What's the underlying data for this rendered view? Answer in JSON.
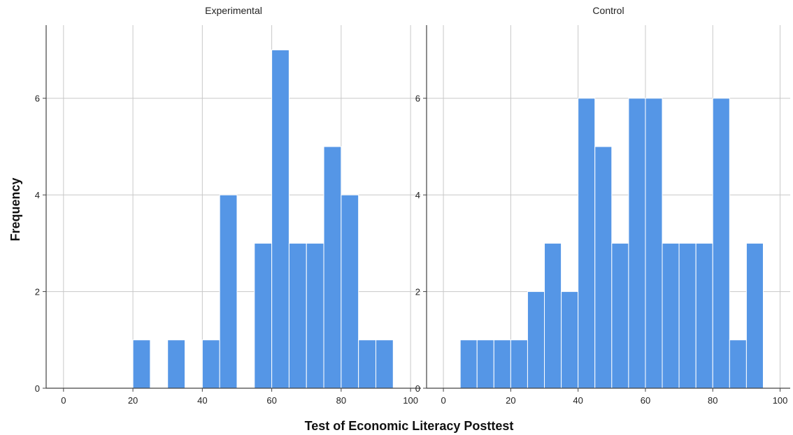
{
  "chart_data": {
    "type": "bar",
    "xlabel": "Test of Economic Literacy Posttest",
    "ylabel": "Frequency",
    "xlim": [
      -5,
      103
    ],
    "ylim": [
      0,
      7.6
    ],
    "x_ticks": [
      0,
      20,
      40,
      60,
      80,
      100
    ],
    "y_ticks": [
      0,
      2,
      4,
      6
    ],
    "bin_width": 5,
    "grid": true,
    "bar_color": "#5596e6",
    "bar_edge_color": "#ffffff",
    "grid_color": "#c8c8c8",
    "panels": [
      {
        "title": "Experimental",
        "bins": [
          {
            "start": 20,
            "end": 25,
            "count": 1
          },
          {
            "start": 30,
            "end": 35,
            "count": 1
          },
          {
            "start": 40,
            "end": 45,
            "count": 1
          },
          {
            "start": 45,
            "end": 50,
            "count": 4
          },
          {
            "start": 55,
            "end": 60,
            "count": 3
          },
          {
            "start": 60,
            "end": 65,
            "count": 7
          },
          {
            "start": 65,
            "end": 70,
            "count": 3
          },
          {
            "start": 70,
            "end": 75,
            "count": 3
          },
          {
            "start": 75,
            "end": 80,
            "count": 5
          },
          {
            "start": 80,
            "end": 85,
            "count": 4
          },
          {
            "start": 85,
            "end": 90,
            "count": 1
          },
          {
            "start": 90,
            "end": 95,
            "count": 1
          }
        ]
      },
      {
        "title": "Control",
        "bins": [
          {
            "start": 5,
            "end": 10,
            "count": 1
          },
          {
            "start": 10,
            "end": 15,
            "count": 1
          },
          {
            "start": 15,
            "end": 20,
            "count": 1
          },
          {
            "start": 20,
            "end": 25,
            "count": 1
          },
          {
            "start": 25,
            "end": 30,
            "count": 2
          },
          {
            "start": 30,
            "end": 35,
            "count": 3
          },
          {
            "start": 35,
            "end": 40,
            "count": 2
          },
          {
            "start": 40,
            "end": 45,
            "count": 6
          },
          {
            "start": 45,
            "end": 50,
            "count": 5
          },
          {
            "start": 50,
            "end": 55,
            "count": 3
          },
          {
            "start": 55,
            "end": 60,
            "count": 6
          },
          {
            "start": 60,
            "end": 65,
            "count": 6
          },
          {
            "start": 65,
            "end": 70,
            "count": 3
          },
          {
            "start": 70,
            "end": 75,
            "count": 3
          },
          {
            "start": 75,
            "end": 80,
            "count": 3
          },
          {
            "start": 80,
            "end": 85,
            "count": 6
          },
          {
            "start": 85,
            "end": 90,
            "count": 1
          },
          {
            "start": 90,
            "end": 95,
            "count": 3
          }
        ]
      }
    ]
  }
}
